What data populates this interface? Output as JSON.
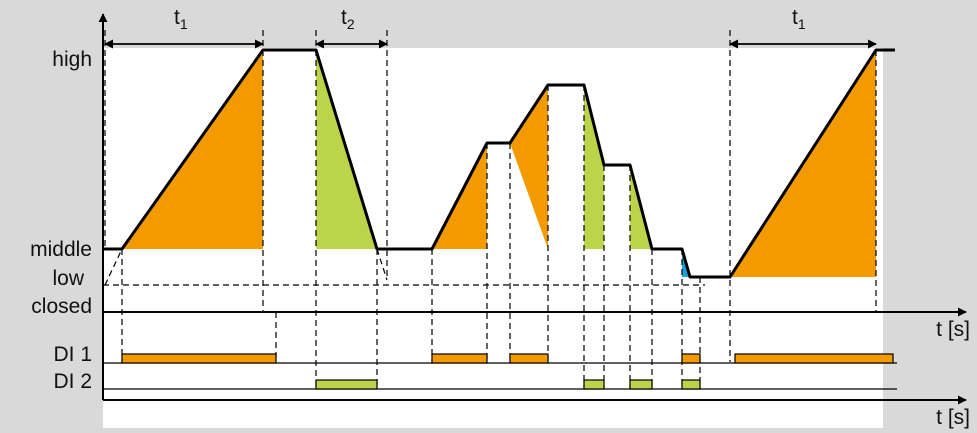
{
  "levels": {
    "high": "high",
    "middle": "middle",
    "low": "low",
    "closed": "closed"
  },
  "inputs": {
    "di1": "DI 1",
    "di2": "DI 2"
  },
  "time_axis_label": "t [s]",
  "intervals": {
    "t1_main": "t",
    "t1_sub": "1",
    "t2_main": "t",
    "t2_sub": "2"
  },
  "colors": {
    "background": "#d9d9d9",
    "plot_area": "#ffffff",
    "ramp_up": "#f39a00",
    "ramp_down": "#bcd44a",
    "ramp_low": "#1aa3d8",
    "line": "#000000"
  }
}
